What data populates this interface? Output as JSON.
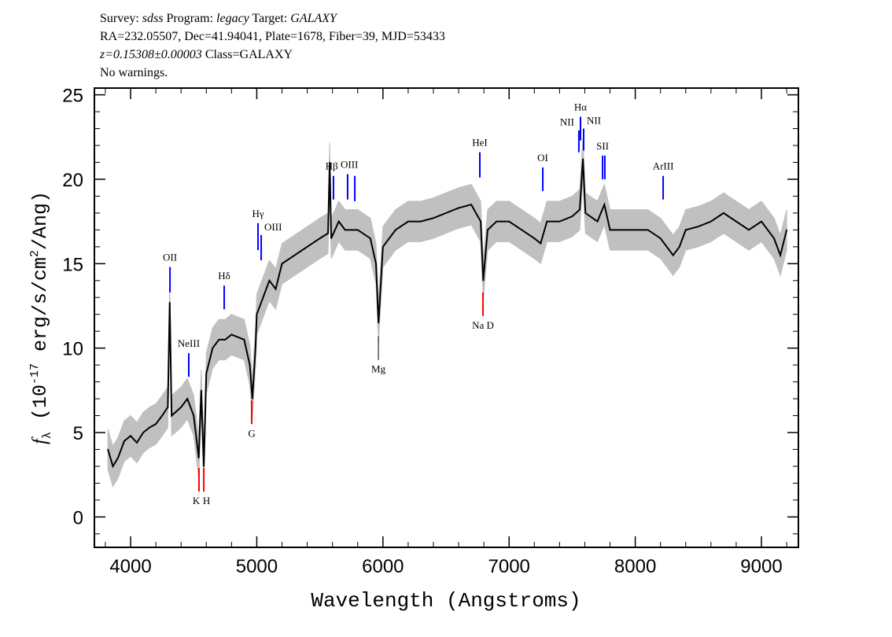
{
  "header": {
    "line1": {
      "survey_label": "Survey:",
      "survey": "sdss",
      "program_label": "Program:",
      "program": "legacy",
      "target_label": "Target:",
      "target": "GALAXY"
    },
    "line2": "RA=232.05507, Dec=41.94041, Plate=1678, Fiber=39, MJD=53433",
    "line3": {
      "redshift": "z=0.15308±0.00003",
      "class": "Class=GALAXY"
    },
    "line4": "No warnings."
  },
  "chart_data": {
    "type": "line",
    "xlabel": "Wavelength (Angstroms)",
    "ylabel": "f_λ (10^-17 erg/s/cm^2/Ang)",
    "xlim": [
      3713,
      9293
    ],
    "ylim": [
      -1.8,
      25.4
    ],
    "xticks": [
      4000,
      5000,
      6000,
      7000,
      8000,
      9000
    ],
    "yticks": [
      0,
      5,
      10,
      15,
      20,
      25
    ],
    "colors": {
      "flux": "#000000",
      "error": "#c0c0c0",
      "emission": "#0000ff",
      "absorption": "#ff0000",
      "sky": "#000000"
    },
    "error_band": 1.2,
    "spectrum": [
      [
        3820,
        4
      ],
      [
        3860,
        3
      ],
      [
        3900,
        3.5
      ],
      [
        3950,
        4.5
      ],
      [
        4000,
        4.8
      ],
      [
        4050,
        4.4
      ],
      [
        4100,
        5
      ],
      [
        4150,
        5.3
      ],
      [
        4200,
        5.5
      ],
      [
        4250,
        6
      ],
      [
        4295,
        6.5
      ],
      [
        4310,
        12.7
      ],
      [
        4325,
        6
      ],
      [
        4400,
        6.5
      ],
      [
        4450,
        7
      ],
      [
        4500,
        6
      ],
      [
        4540,
        3.5
      ],
      [
        4560,
        7.5
      ],
      [
        4580,
        3
      ],
      [
        4600,
        8.5
      ],
      [
        4650,
        10
      ],
      [
        4700,
        10.5
      ],
      [
        4750,
        10.5
      ],
      [
        4800,
        10.8
      ],
      [
        4900,
        10.5
      ],
      [
        4945,
        9
      ],
      [
        4965,
        7
      ],
      [
        4990,
        10
      ],
      [
        5000,
        12
      ],
      [
        5050,
        13
      ],
      [
        5100,
        14
      ],
      [
        5150,
        13.5
      ],
      [
        5200,
        15
      ],
      [
        5300,
        15.5
      ],
      [
        5400,
        16
      ],
      [
        5500,
        16.5
      ],
      [
        5565,
        16.8
      ],
      [
        5578,
        21
      ],
      [
        5590,
        16.5
      ],
      [
        5650,
        17.5
      ],
      [
        5700,
        17
      ],
      [
        5800,
        17
      ],
      [
        5900,
        16.5
      ],
      [
        5945,
        15
      ],
      [
        5965,
        11.5
      ],
      [
        6000,
        16
      ],
      [
        6100,
        17
      ],
      [
        6200,
        17.5
      ],
      [
        6300,
        17.5
      ],
      [
        6400,
        17.7
      ],
      [
        6500,
        18
      ],
      [
        6600,
        18.3
      ],
      [
        6700,
        18.5
      ],
      [
        6775,
        17.5
      ],
      [
        6795,
        14
      ],
      [
        6830,
        17
      ],
      [
        6900,
        17.5
      ],
      [
        7000,
        17.5
      ],
      [
        7100,
        17
      ],
      [
        7200,
        16.5
      ],
      [
        7250,
        16.2
      ],
      [
        7300,
        17.5
      ],
      [
        7400,
        17.5
      ],
      [
        7500,
        17.8
      ],
      [
        7560,
        18.2
      ],
      [
        7585,
        21.2
      ],
      [
        7605,
        18
      ],
      [
        7700,
        17.5
      ],
      [
        7755,
        18.5
      ],
      [
        7800,
        17
      ],
      [
        7900,
        17
      ],
      [
        8000,
        17
      ],
      [
        8100,
        17
      ],
      [
        8200,
        16.5
      ],
      [
        8300,
        15.5
      ],
      [
        8350,
        16
      ],
      [
        8400,
        17
      ],
      [
        8500,
        17.2
      ],
      [
        8600,
        17.5
      ],
      [
        8700,
        18
      ],
      [
        8800,
        17.5
      ],
      [
        8900,
        17
      ],
      [
        9000,
        17.5
      ],
      [
        9100,
        16.5
      ],
      [
        9150,
        15.5
      ],
      [
        9200,
        17
      ]
    ],
    "lines": [
      {
        "label": "OII",
        "wavelength": 4312,
        "type": "emission",
        "flux": [
          13.3,
          14.8
        ]
      },
      {
        "label": "NeIII",
        "wavelength": 4461,
        "type": "emission",
        "flux": [
          8.3,
          9.7
        ]
      },
      {
        "label": "Hδ",
        "wavelength": 4742,
        "type": "emission",
        "flux": [
          12.3,
          13.7
        ]
      },
      {
        "label": "Hγ",
        "wavelength": 5010,
        "type": "emission",
        "flux": [
          15.8,
          17.4
        ]
      },
      {
        "label": "OIII",
        "wavelength": 5035,
        "type": "emission",
        "flux": [
          15.2,
          16.7
        ],
        "offset": "right"
      },
      {
        "label": "Hβ",
        "wavelength": 5608,
        "type": "emission",
        "flux": [
          18.8,
          20.2
        ]
      },
      {
        "label": "OIII",
        "wavelength": 5720,
        "type": "emission",
        "flux": [
          18.8,
          20.3
        ]
      },
      {
        "label": "",
        "wavelength": 5777,
        "type": "emission",
        "flux": [
          18.7,
          20.2
        ]
      },
      {
        "label": "HeI",
        "wavelength": 6768,
        "type": "emission",
        "flux": [
          20.1,
          21.6
        ]
      },
      {
        "label": "OI",
        "wavelength": 7267,
        "type": "emission",
        "flux": [
          19.3,
          20.7
        ]
      },
      {
        "label": "NII",
        "wavelength": 7553,
        "type": "emission",
        "flux": [
          21.6,
          22.9
        ],
        "offset": "left"
      },
      {
        "label": "Hα",
        "wavelength": 7566,
        "type": "emission",
        "flux": [
          22.3,
          23.7
        ]
      },
      {
        "label": "NII",
        "wavelength": 7591,
        "type": "emission",
        "flux": [
          21.7,
          23.0
        ],
        "offset": "right"
      },
      {
        "label": "SII",
        "wavelength": 7741,
        "type": "emission",
        "flux": [
          20.0,
          21.4
        ]
      },
      {
        "label": "",
        "wavelength": 7759,
        "type": "emission",
        "flux": [
          20.0,
          21.4
        ]
      },
      {
        "label": "ArIII",
        "wavelength": 8221,
        "type": "emission",
        "flux": [
          18.8,
          20.2
        ]
      },
      {
        "label": "K",
        "wavelength": 4542,
        "type": "absorption",
        "flux": [
          1.5,
          2.9
        ]
      },
      {
        "label": "H",
        "wavelength": 4580,
        "type": "absorption",
        "flux": [
          1.5,
          2.9
        ]
      },
      {
        "label": "G",
        "wavelength": 4960,
        "type": "absorption",
        "flux": [
          5.5,
          6.9
        ]
      },
      {
        "label": "Mg",
        "wavelength": 5964,
        "type": "sky",
        "flux": [
          9.3,
          10.7
        ]
      },
      {
        "label": "Na D",
        "wavelength": 6793,
        "type": "absorption",
        "flux": [
          11.9,
          13.3
        ]
      }
    ]
  }
}
